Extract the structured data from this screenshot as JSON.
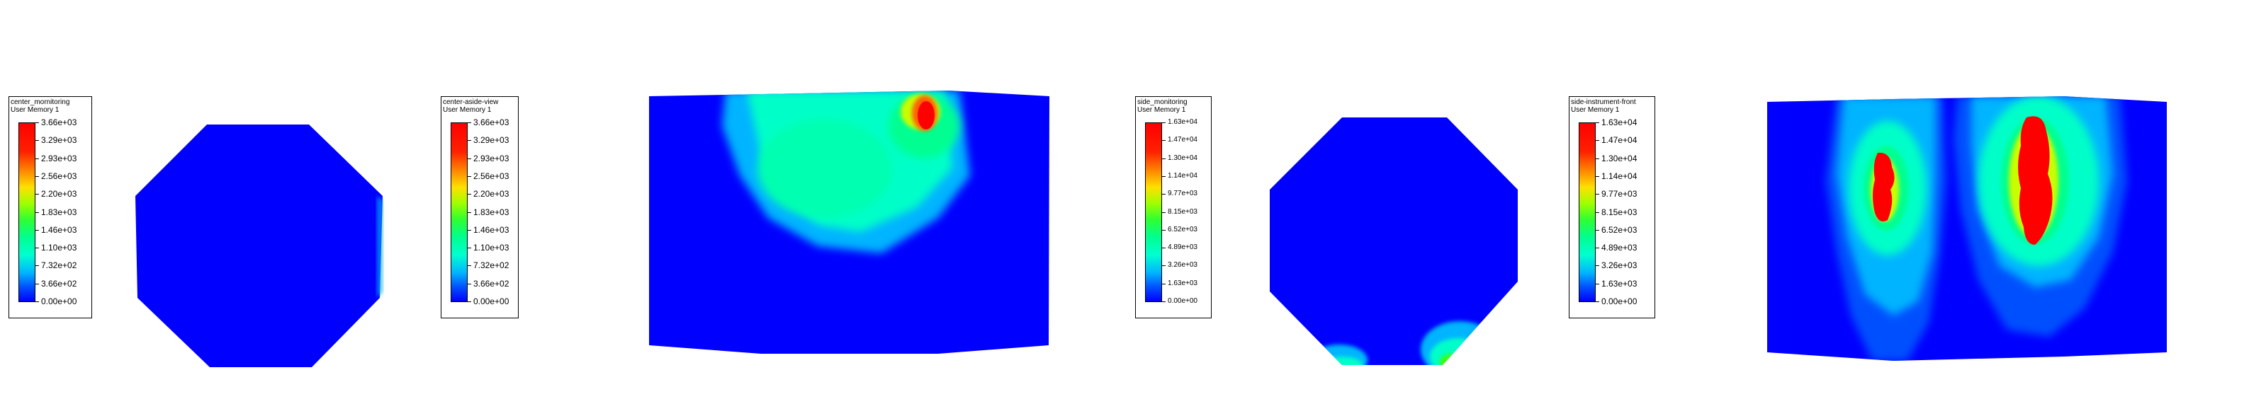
{
  "colors": {
    "background": "#ffffff",
    "field_low": "#0000ff",
    "colormap": [
      "#0000ff",
      "#00b4ff",
      "#00ffc8",
      "#00ff80",
      "#40ff00",
      "#c8ff00",
      "#ffd000",
      "#ff6000",
      "#ff0000"
    ]
  },
  "legends": [
    {
      "title": "center_mornitoring",
      "subtitle": "User Memory 1",
      "labels": [
        "3.66e+03",
        "3.29e+03",
        "2.93e+03",
        "2.56e+03",
        "2.20e+03",
        "1.83e+03",
        "1.46e+03",
        "1.10e+03",
        "7.32e+02",
        "3.66e+02",
        "0.00e+00"
      ]
    },
    {
      "title": "center-aside-view",
      "subtitle": "User Memory 1",
      "labels": [
        "3.66e+03",
        "3.29e+03",
        "2.93e+03",
        "2.56e+03",
        "2.20e+03",
        "1.83e+03",
        "1.46e+03",
        "1.10e+03",
        "7.32e+02",
        "3.66e+02",
        "0.00e+00"
      ]
    },
    {
      "title": "side_monitoring",
      "subtitle": "User Memory 1",
      "labels": [
        "1.63e+04",
        "1.47e+04",
        "1.30e+04",
        "1.14e+04",
        "9.77e+03",
        "8.15e+03",
        "6.52e+03",
        "4.89e+03",
        "3.26e+03",
        "1.63e+03",
        "0.00e+00"
      ]
    },
    {
      "title": "side-instrument-front",
      "subtitle": "User Memory 1",
      "labels": [
        "1.63e+04",
        "1.47e+04",
        "1.30e+04",
        "1.14e+04",
        "9.77e+03",
        "8.15e+03",
        "6.52e+03",
        "4.89e+03",
        "3.26e+03",
        "1.63e+03",
        "0.00e+00"
      ]
    }
  ]
}
